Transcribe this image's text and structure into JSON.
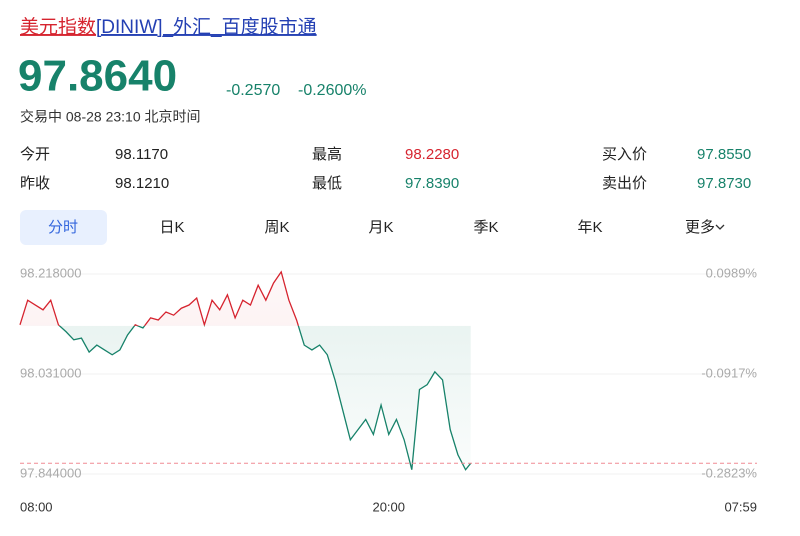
{
  "header": {
    "title_main": "美元指数",
    "title_rest": "[DINIW]_外汇_百度股市通"
  },
  "quote": {
    "price": "97.8640",
    "change": "-0.2570",
    "change_pct": "-0.2600%",
    "status": "交易中 08-28 23:10 北京时间"
  },
  "stats": {
    "rows": [
      [
        "今开",
        "98.1170",
        "最高",
        "98.2280",
        "买入价",
        "97.8550"
      ],
      [
        "昨收",
        "98.1210",
        "最低",
        "97.8390",
        "卖出价",
        "97.8730"
      ]
    ]
  },
  "tabs": [
    "分时",
    "日K",
    "周K",
    "月K",
    "季K",
    "年K",
    "更多"
  ],
  "chart_data": {
    "type": "line",
    "x": [
      "08:00",
      "08:15",
      "08:30",
      "08:45",
      "09:00",
      "09:15",
      "09:30",
      "09:45",
      "10:00",
      "10:15",
      "10:30",
      "10:45",
      "11:00",
      "11:15",
      "11:30",
      "11:45",
      "12:00",
      "12:15",
      "12:30",
      "12:45",
      "13:00",
      "13:15",
      "13:30",
      "13:45",
      "14:00",
      "14:15",
      "14:30",
      "14:45",
      "15:00",
      "15:15",
      "15:30",
      "15:45",
      "16:00",
      "16:15",
      "16:30",
      "16:45",
      "17:00",
      "17:15",
      "17:30",
      "17:45",
      "18:00",
      "18:15",
      "18:30",
      "18:45",
      "19:00",
      "19:15",
      "19:30",
      "19:45",
      "20:00",
      "20:15",
      "20:30",
      "20:45",
      "21:00",
      "21:15",
      "21:30",
      "21:45",
      "22:00",
      "22:15",
      "22:30",
      "22:40"
    ],
    "values": [
      98.123,
      98.169,
      98.16,
      98.151,
      98.169,
      98.123,
      98.11,
      98.095,
      98.098,
      98.072,
      98.085,
      98.076,
      98.067,
      98.076,
      98.104,
      98.123,
      98.117,
      98.136,
      98.132,
      98.147,
      98.141,
      98.154,
      98.16,
      98.173,
      98.123,
      98.169,
      98.151,
      98.179,
      98.136,
      98.169,
      98.16,
      98.197,
      98.169,
      98.201,
      98.222,
      98.169,
      98.132,
      98.085,
      98.076,
      98.085,
      98.067,
      98.02,
      97.964,
      97.908,
      97.927,
      97.946,
      97.918,
      97.973,
      97.918,
      97.946,
      97.908,
      97.852,
      98.002,
      98.011,
      98.035,
      98.02,
      97.927,
      97.88,
      97.852,
      97.864
    ],
    "xlim": [
      "08:00",
      "07:59"
    ],
    "xticks": [
      "08:00",
      "20:00",
      "07:59"
    ],
    "ylim": [
      97.844,
      98.218
    ],
    "yticks": [
      {
        "value": 98.218,
        "label": "98.218000"
      },
      {
        "value": 98.031,
        "label": "98.031000"
      },
      {
        "value": 97.844,
        "label": "97.844000"
      }
    ],
    "y2lim": [
      -0.2823,
      0.0989
    ],
    "y2ticks": [
      {
        "value": 0.0989,
        "label": "0.0989%"
      },
      {
        "value": -0.0917,
        "label": "-0.0917%"
      },
      {
        "value": -0.2823,
        "label": "-0.2823%"
      }
    ],
    "up_color": "#d6242f",
    "down_color": "#17826a"
  }
}
